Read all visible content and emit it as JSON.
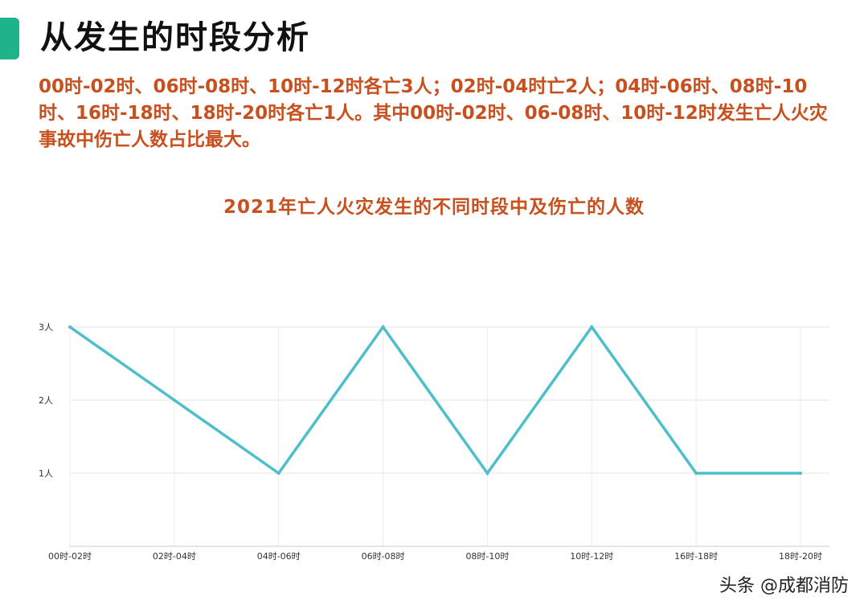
{
  "header": {
    "title": "从发生的时段分析",
    "accent_color": "#1fb38a"
  },
  "summary_text": "00时-02时、06时-08时、10时-12时各亡3人；02时-04时亡2人；04时-06时、08时-10时、16时-18时、18时-20时各亡1人。其中00时-02时、06-08时、10时-12时发生亡人火灾事故中伤亡人数占比最大。",
  "chart_data": {
    "type": "line",
    "title": "2021年亡人火灾发生的不同时段中及伤亡的人数",
    "categories": [
      "00时-02时",
      "02时-04时",
      "04时-06时",
      "06时-08时",
      "08时-10时",
      "10时-12时",
      "16时-18时",
      "18时-20时"
    ],
    "values": [
      3,
      2,
      1,
      3,
      1,
      3,
      1,
      1
    ],
    "ylim": [
      0,
      3
    ],
    "y_ticks": [
      {
        "value": 1,
        "label": "1人"
      },
      {
        "value": 2,
        "label": "2人"
      },
      {
        "value": 3,
        "label": "3人"
      }
    ],
    "grid": true,
    "line_color": "#4dbfcb",
    "title_color": "#c8501e"
  },
  "watermark": "头条 @成都消防"
}
